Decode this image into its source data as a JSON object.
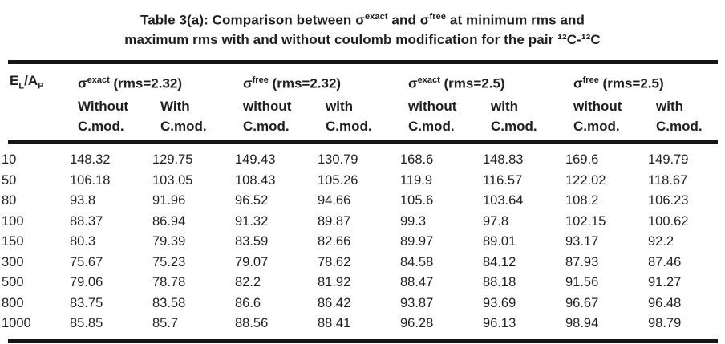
{
  "title": {
    "part1": "Table 3(a): Comparison between ",
    "sigma": "σ",
    "sup_exact": "exact",
    "part2": " and ",
    "sup_free": "free",
    "part3": " at minimum rms and",
    "line2": "maximum rms with and without coulomb modification for the pair ¹²C-¹²C"
  },
  "header": {
    "energy_label": {
      "e": "E",
      "sub_l": "L",
      "slash": "/",
      "a": "A",
      "sub_p": "P"
    },
    "cmod_label": "C.mod.",
    "groups": [
      {
        "sigma": "σ",
        "sup": "exact",
        "rms": " (rms=2.32)",
        "col1": "Without",
        "col2": "With"
      },
      {
        "sigma": "σ",
        "sup": "free",
        "rms": " (rms=2.32)",
        "col1": "without",
        "col2": "with"
      },
      {
        "sigma": "σ",
        "sup": "exact",
        "rms": " (rms=2.5)",
        "col1": "without",
        "col2": "with"
      },
      {
        "sigma": "σ",
        "sup": "free",
        "rms": " (rms=2.5)",
        "col1": "without",
        "col2": "with"
      }
    ]
  },
  "rows": [
    {
      "e": "10",
      "values": [
        "148.32",
        "129.75",
        "149.43",
        "130.79",
        "168.6",
        "148.83",
        "169.6",
        "149.79"
      ]
    },
    {
      "e": "50",
      "values": [
        "106.18",
        "103.05",
        "108.43",
        "105.26",
        "119.9",
        "116.57",
        "122.02",
        "118.67"
      ]
    },
    {
      "e": "80",
      "values": [
        "93.8",
        "91.96",
        "96.52",
        "94.66",
        "105.6",
        "103.64",
        "108.2",
        "106.23"
      ]
    },
    {
      "e": "100",
      "values": [
        "88.37",
        "86.94",
        "91.32",
        "89.87",
        "99.3",
        "97.8",
        "102.15",
        "100.62"
      ]
    },
    {
      "e": "150",
      "values": [
        "80.3",
        "79.39",
        "83.59",
        "82.66",
        "89.97",
        "89.01",
        "93.17",
        "92.2"
      ]
    },
    {
      "e": "300",
      "values": [
        "75.67",
        "75.23",
        "79.07",
        "78.62",
        "84.58",
        "84.12",
        "87.93",
        "87.46"
      ]
    },
    {
      "e": "500",
      "values": [
        "79.06",
        "78.78",
        "82.2",
        "81.92",
        "88.47",
        "88.18",
        "91.56",
        "91.27"
      ]
    },
    {
      "e": "800",
      "values": [
        "83.75",
        "83.58",
        "86.6",
        "86.42",
        "93.87",
        "93.69",
        "96.67",
        "96.48"
      ]
    },
    {
      "e": "1000",
      "values": [
        "85.85",
        "85.7",
        "88.56",
        "88.41",
        "96.28",
        "96.13",
        "98.94",
        "98.79"
      ]
    }
  ],
  "colors": {
    "text": "#1f1f1f",
    "rule": "#161616",
    "background": "#ffffff"
  }
}
